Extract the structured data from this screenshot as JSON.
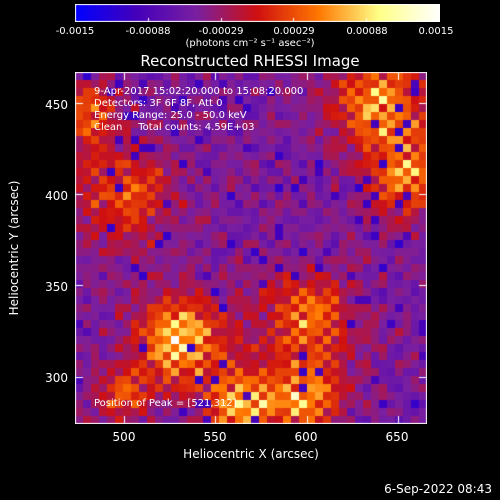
{
  "colorbar": {
    "ticks": [
      "-0.0015",
      "-0.00088",
      "-0.00029",
      "0.00029",
      "0.00088",
      "0.0015"
    ],
    "units_text": "(photons cm⁻² s⁻¹ asec⁻²)"
  },
  "title": "Reconstructed RHESSI Image",
  "info": {
    "time": "9-Apr-2017 15:02:20.000 to 15:08:20.000",
    "detectors": "Detectors: 3F 6F 8F, Att 0",
    "energy": "Energy Range: 25.0 - 50.0 keV",
    "clean": "Clean     Total counts: 4.59E+03"
  },
  "peak_text": "Position of Peak = [521,312]",
  "date_stamp": "6-Sep-2022 08:43",
  "chart_data": {
    "type": "heatmap",
    "title": "Reconstructed RHESSI Image",
    "xlabel": "Heliocentric X (arcsec)",
    "ylabel": "Heliocentric Y (arcsec)",
    "xlim": [
      473,
      666
    ],
    "ylim": [
      274,
      467
    ],
    "x_ticks": [
      "500",
      "550",
      "600",
      "650"
    ],
    "y_ticks": [
      "300",
      "350",
      "400",
      "450"
    ],
    "x_tick_values": [
      500,
      550,
      600,
      650
    ],
    "y_tick_values": [
      300,
      350,
      400,
      450
    ],
    "zlim": [
      -0.0015,
      0.0015
    ],
    "colormap": [
      "#0000ff",
      "#4400bb",
      "#7a1fa0",
      "#d01010",
      "#ff7700",
      "#ffff88",
      "#ffffff"
    ],
    "peak_position": [
      521,
      312
    ],
    "hot_regions": [
      {
        "x": 530,
        "y": 320,
        "strength": 1.0,
        "spread": 16
      },
      {
        "x": 565,
        "y": 285,
        "strength": 0.9,
        "spread": 14
      },
      {
        "x": 600,
        "y": 288,
        "strength": 0.85,
        "spread": 12
      },
      {
        "x": 640,
        "y": 450,
        "strength": 0.85,
        "spread": 18
      },
      {
        "x": 655,
        "y": 410,
        "strength": 0.75,
        "spread": 14
      },
      {
        "x": 600,
        "y": 330,
        "strength": 0.7,
        "spread": 18
      },
      {
        "x": 500,
        "y": 400,
        "strength": 0.55,
        "spread": 20
      },
      {
        "x": 480,
        "y": 445,
        "strength": 0.6,
        "spread": 12
      },
      {
        "x": 500,
        "y": 290,
        "strength": 0.6,
        "spread": 10
      }
    ]
  }
}
